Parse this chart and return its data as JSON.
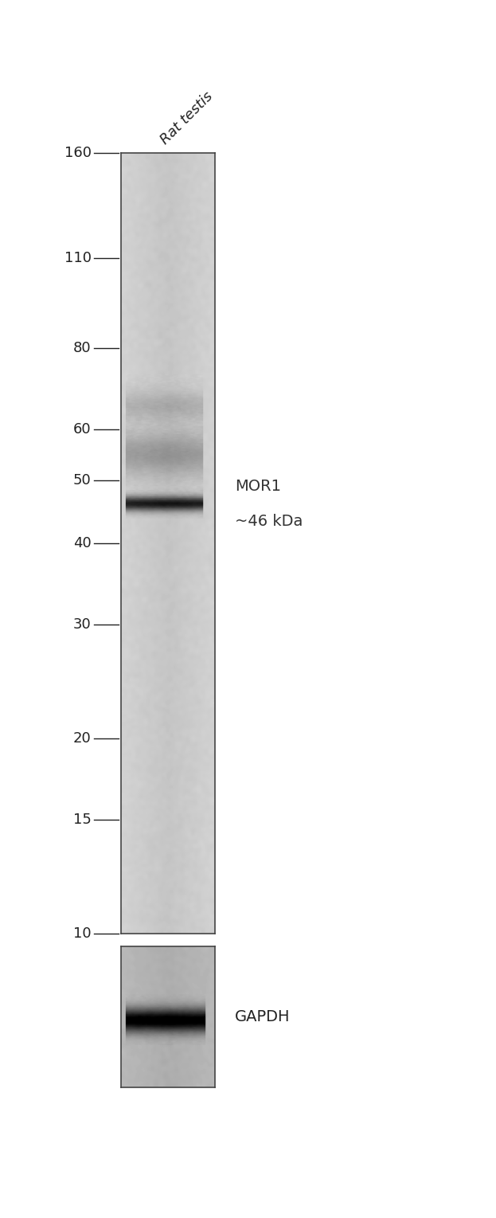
{
  "fig_width": 6.23,
  "fig_height": 15.29,
  "dpi": 100,
  "background_color": "#ffffff",
  "lane_label": "Rat testis",
  "lane_label_rotation": 45,
  "lane_label_fontsize": 13,
  "lane_label_color": "#222222",
  "lane_label_style": "italic",
  "mw_markers": [
    160,
    110,
    80,
    60,
    50,
    40,
    30,
    20,
    15,
    10
  ],
  "mw_fontsize": 13,
  "mw_color": "#222222",
  "tick_color": "#222222",
  "main_band_label_line1": "MOR1",
  "main_band_label_line2": "~46 kDa",
  "main_band_label_color": "#333333",
  "main_band_label_fontsize": 14,
  "gapdh_label": "GAPDH",
  "gapdh_label_color": "#222222",
  "gapdh_label_fontsize": 14,
  "mw_log_min": 1.0,
  "mw_log_max": 2.204,
  "noise_seed": 42,
  "main_blot_bg": 0.82,
  "gapdh_blot_bg": 0.72
}
